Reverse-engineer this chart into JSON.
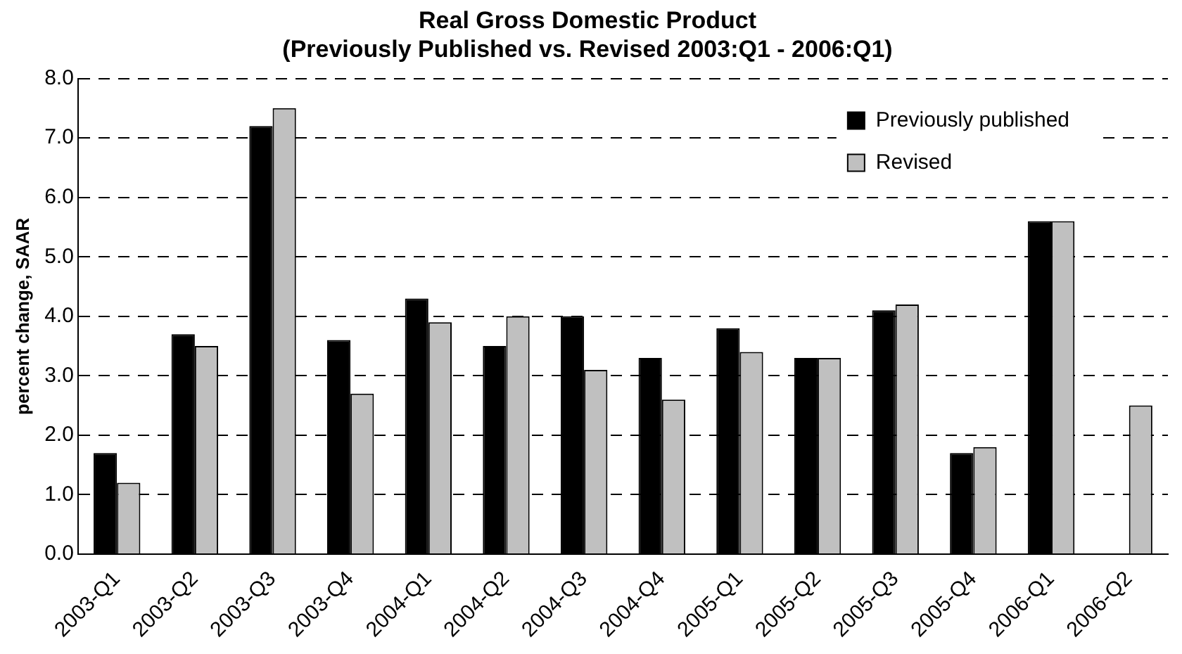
{
  "chart_data": {
    "type": "bar",
    "title": [
      "Real Gross Domestic Product",
      "(Previously Published vs. Revised 2003:Q1 - 2006:Q1)"
    ],
    "ylabel": "percent change, SAAR",
    "categories": [
      "2003-Q1",
      "2003-Q2",
      "2003-Q3",
      "2003-Q4",
      "2004-Q1",
      "2004-Q2",
      "2004-Q3",
      "2004-Q4",
      "2005-Q1",
      "2005-Q2",
      "2005-Q3",
      "2005-Q4",
      "2006-Q1",
      "2006-Q2"
    ],
    "series": [
      {
        "name": "Previously published",
        "color": "#000000",
        "values": [
          1.7,
          3.7,
          7.2,
          3.6,
          4.3,
          3.5,
          4.0,
          3.3,
          3.8,
          3.3,
          4.1,
          1.7,
          5.6,
          null
        ]
      },
      {
        "name": "Revised",
        "color": "#c0c0c0",
        "values": [
          1.2,
          3.5,
          7.5,
          2.7,
          3.9,
          4.0,
          3.1,
          2.6,
          3.4,
          3.3,
          4.2,
          1.8,
          5.6,
          2.5
        ]
      }
    ],
    "ylim": [
      0,
      8
    ],
    "yticks": [
      {
        "value": 0,
        "label": "0.0"
      },
      {
        "value": 1,
        "label": "1.0"
      },
      {
        "value": 2,
        "label": "2.0"
      },
      {
        "value": 3,
        "label": "3.0"
      },
      {
        "value": 4,
        "label": "4.0"
      },
      {
        "value": 5,
        "label": "5.0"
      },
      {
        "value": 6,
        "label": "6.0"
      },
      {
        "value": 7,
        "label": "7.0"
      },
      {
        "value": 8,
        "label": "8.0"
      }
    ],
    "grid": "y",
    "legend": "top right"
  }
}
